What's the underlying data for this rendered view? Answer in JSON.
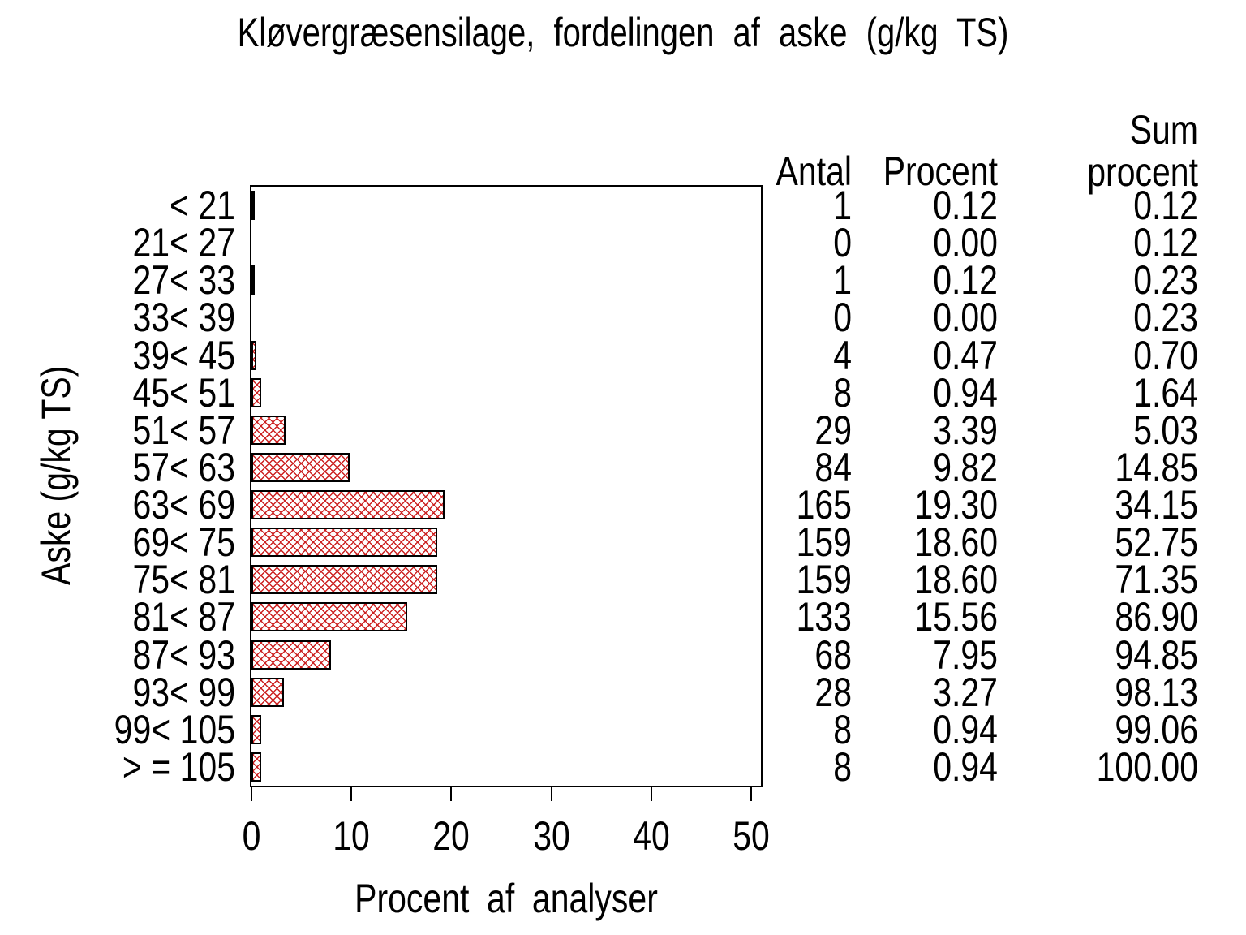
{
  "title": "Kløvergræsensilage, fordelingen af aske (g/kg TS)",
  "axes": {
    "xlabel": "Procent af analyser",
    "ylabel": "Aske (g/kg TS)"
  },
  "table": {
    "header_antal": "Antal",
    "header_procent": "Procent",
    "header_sum_line1": "Sum",
    "header_sum_line2": "procent"
  },
  "chart_data": {
    "type": "bar",
    "orientation": "horizontal",
    "title": "Kløvergræsensilage, fordelingen af aske (g/kg TS)",
    "xlabel": "Procent af analyser",
    "ylabel": "Aske (g/kg TS)",
    "xlim": [
      0,
      51
    ],
    "xticks": [
      0,
      10,
      20,
      30,
      40,
      50
    ],
    "grid": false,
    "legend": "none",
    "bar_style": {
      "fill_pattern": "red-diagonal-crosshatch",
      "pattern_color": "#cc2222",
      "border_color": "#000000",
      "background": "#ffffff"
    },
    "categories": [
      "< 21",
      "21< 27",
      "27< 33",
      "33< 39",
      "39< 45",
      "45< 51",
      "51< 57",
      "57< 63",
      "63< 69",
      "69< 75",
      "75< 81",
      "81< 87",
      "87< 93",
      "93< 99",
      "99< 105",
      "> = 105"
    ],
    "bar_series": "Procent",
    "series": [
      {
        "name": "Antal",
        "values": [
          1,
          0,
          1,
          0,
          4,
          8,
          29,
          84,
          165,
          159,
          159,
          133,
          68,
          28,
          8,
          8
        ]
      },
      {
        "name": "Procent",
        "values": [
          0.12,
          0.0,
          0.12,
          0.0,
          0.47,
          0.94,
          3.39,
          9.82,
          19.3,
          18.6,
          18.6,
          15.56,
          7.95,
          3.27,
          0.94,
          0.94
        ]
      },
      {
        "name": "Sum procent",
        "values": [
          0.12,
          0.12,
          0.23,
          0.23,
          0.7,
          1.64,
          5.03,
          14.85,
          34.15,
          52.75,
          71.35,
          86.9,
          94.85,
          98.13,
          99.06,
          100.0
        ]
      }
    ]
  }
}
